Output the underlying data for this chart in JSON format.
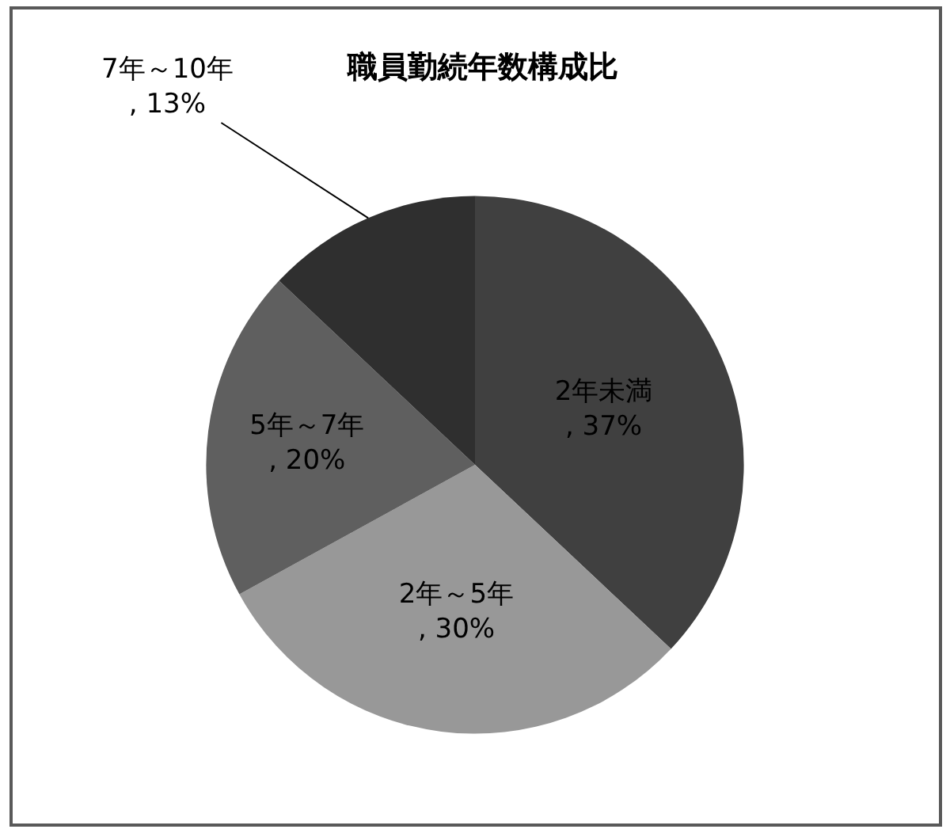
{
  "chart_data": {
    "type": "pie",
    "title": "職員勤続年数構成比",
    "categories": [
      "2年未満",
      "2年～5年",
      "5年～7年",
      "7年～10年"
    ],
    "values": [
      37,
      30,
      20,
      13
    ],
    "colors": [
      "#404040",
      "#989898",
      "#5f5f5f",
      "#2f2f2f"
    ],
    "value_labels": [
      ", 37%",
      ", 30%",
      ", 20%",
      ", 13%"
    ],
    "legend": false
  }
}
